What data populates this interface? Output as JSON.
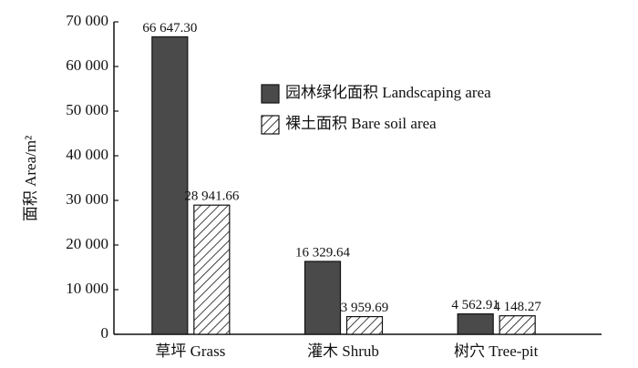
{
  "chart_data": {
    "type": "bar",
    "y_label": "面积 Area/m²",
    "categories": [
      "草坪 Grass",
      "灌木 Shrub",
      "树穴 Tree-pit"
    ],
    "series": [
      {
        "name": "园林绿化面积 Landscaping area",
        "color": "#4a4a4a",
        "hatch": false,
        "values": [
          66647.3,
          16329.64,
          4562.91
        ],
        "value_labels": [
          "66 647.30",
          "16 329.64",
          "4 562.91"
        ]
      },
      {
        "name": "裸土面积 Bare soil area",
        "color": "#ffffff",
        "hatch": true,
        "values": [
          28941.66,
          3959.69,
          4148.27
        ],
        "value_labels": [
          "28 941.66",
          "3 959.69",
          "4 148.27"
        ]
      }
    ],
    "ylim": [
      0,
      70000
    ],
    "yticks": [
      {
        "value": 0,
        "label": "0"
      },
      {
        "value": 10000,
        "label": "10 000"
      },
      {
        "value": 20000,
        "label": "20 000"
      },
      {
        "value": 30000,
        "label": "30 000"
      },
      {
        "value": 40000,
        "label": "40 000"
      },
      {
        "value": 50000,
        "label": "50 000"
      },
      {
        "value": 60000,
        "label": "60 000"
      },
      {
        "value": 70000,
        "label": "70 000"
      }
    ],
    "grid": false
  }
}
